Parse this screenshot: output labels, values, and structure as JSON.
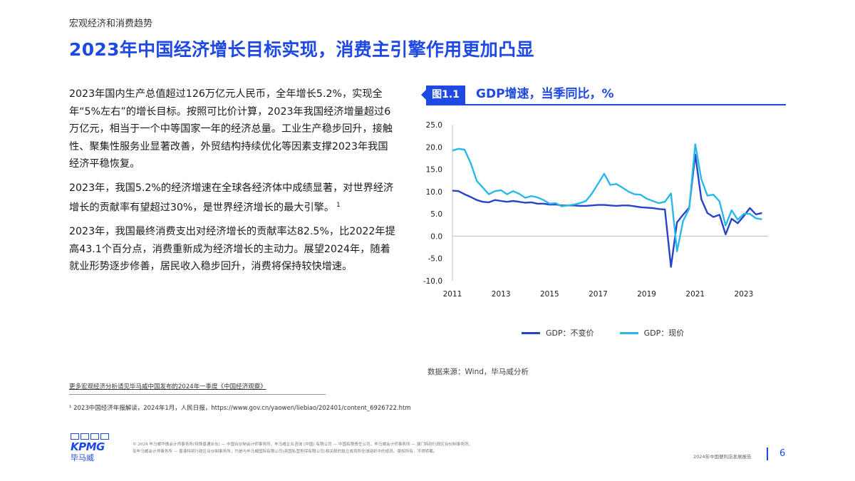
{
  "header": {
    "section": "宏观经济和消费趋势",
    "title": "2023年中国经济增长目标实现，消费主引擎作用更加凸显"
  },
  "body": {
    "paragraphs": [
      "2023年国内生产总值超过126万亿元人民币，全年增长5.2%，实现全年“5%左右”的增长目标。按照可比价计算，2023年我国经济增量超过6万亿元，相当于一个中等国家一年的经济总量。工业生产稳步回升，接触性、聚集性服务业显著改善，外贸结构持续优化等因素支撑2023年我国经济平稳恢复。",
      "2023年，我国5.2%的经济增速在全球各经济体中成绩显著，对世界经济增长的贡献率有望超过30%，是世界经济增长的最大引擎。",
      "2023年，我国最终消费支出对经济增长的贡献率达82.5%，比2022年提高43.1个百分点，消费重新成为经济增长的主动力。展望2024年，随着就业形势逐步修善，居民收入稳步回升，消费将保持较快增速。"
    ],
    "footnote_marker": "1"
  },
  "figure": {
    "tag": "图1.1",
    "title": "GDP增速，当季同比，%",
    "source": "数据来源：Wind，毕马威分析"
  },
  "chart_data": {
    "type": "line",
    "title": "GDP增速，当季同比，%",
    "xlabel": "",
    "ylabel": "",
    "ylim": [
      -10,
      25
    ],
    "xlim": [
      2011,
      2024
    ],
    "yticks": [
      "25.0",
      "20.0",
      "15.0",
      "10.0",
      "5.0",
      "0.0",
      "-5.0",
      "-10.0"
    ],
    "xticks": [
      "2011",
      "2013",
      "2015",
      "2017",
      "2019",
      "2021",
      "2023"
    ],
    "grid": false,
    "legend_position": "bottom",
    "colors": {
      "real": "#2743c9",
      "nominal": "#29b8e8"
    },
    "x": [
      2011.0,
      2011.25,
      2011.5,
      2011.75,
      2012.0,
      2012.25,
      2012.5,
      2012.75,
      2013.0,
      2013.25,
      2013.5,
      2013.75,
      2014.0,
      2014.25,
      2014.5,
      2014.75,
      2015.0,
      2015.25,
      2015.5,
      2015.75,
      2016.0,
      2016.25,
      2016.5,
      2016.75,
      2017.0,
      2017.25,
      2017.5,
      2017.75,
      2018.0,
      2018.25,
      2018.5,
      2018.75,
      2019.0,
      2019.25,
      2019.5,
      2019.75,
      2020.0,
      2020.25,
      2020.5,
      2020.75,
      2021.0,
      2021.25,
      2021.5,
      2021.75,
      2022.0,
      2022.25,
      2022.5,
      2022.75,
      2023.0,
      2023.25,
      2023.5,
      2023.75
    ],
    "series": [
      {
        "name": "GDP：不变价",
        "values": [
          10.2,
          10.1,
          9.4,
          8.8,
          8.1,
          7.7,
          7.6,
          8.1,
          7.9,
          7.7,
          7.9,
          7.7,
          7.5,
          7.6,
          7.3,
          7.3,
          7.1,
          7.1,
          6.9,
          6.9,
          6.9,
          6.8,
          6.8,
          6.9,
          7.0,
          7.0,
          6.9,
          6.8,
          6.9,
          6.9,
          6.7,
          6.5,
          6.4,
          6.3,
          6.1,
          6.0,
          -6.9,
          3.1,
          4.8,
          6.4,
          18.3,
          8.3,
          5.2,
          4.3,
          4.8,
          0.4,
          3.9,
          2.9,
          4.5,
          6.3,
          4.9,
          5.2
        ]
      },
      {
        "name": "GDP：现价",
        "values": [
          19.2,
          19.6,
          19.4,
          16.4,
          12.4,
          10.9,
          9.4,
          10.1,
          10.3,
          9.4,
          10.1,
          9.5,
          8.6,
          9.0,
          8.7,
          8.1,
          7.3,
          7.4,
          6.7,
          6.9,
          7.1,
          7.4,
          7.9,
          9.6,
          11.8,
          14.0,
          11.5,
          11.7,
          10.9,
          10.0,
          9.4,
          9.3,
          8.4,
          7.9,
          7.4,
          7.7,
          9.6,
          -3.4,
          3.4,
          6.2,
          20.6,
          12.8,
          9.1,
          9.3,
          7.8,
          2.4,
          5.8,
          3.7,
          5.0,
          5.0,
          4.0,
          3.8
        ]
      }
    ]
  },
  "footer": {
    "more_link": "更多宏观经济分析请见毕马威中国发布的2024年一季度《中国经济观察》",
    "footnote": "¹ 2023中国经济年报解读，2024年1月，人民日报，https://www.gov.cn/yaowen/liebiao/202401/content_6926722.htm",
    "logo_word": "KPMG",
    "logo_cn": "毕马威",
    "legal_line1": "© 2024 毕马威华振会计师事务所(特殊普通合伙) — 中国合伙制会计师事务所，毕马威企业咨询 (中国) 有限公司 — 中国有限责任公司，毕马威会计师事务所 — 澳门特别行政区合伙制事务所，",
    "legal_line2": "及毕马威会计师事务所 — 香港特别行政区合伙制事务所，均是与毕马威国际有限公司(英国私营担保有限公司)相关联的独立成员所全球组织中的成员。版权所有，不得转载。",
    "report_name": "2024年中国便利店发展报告",
    "page_number": "6"
  }
}
